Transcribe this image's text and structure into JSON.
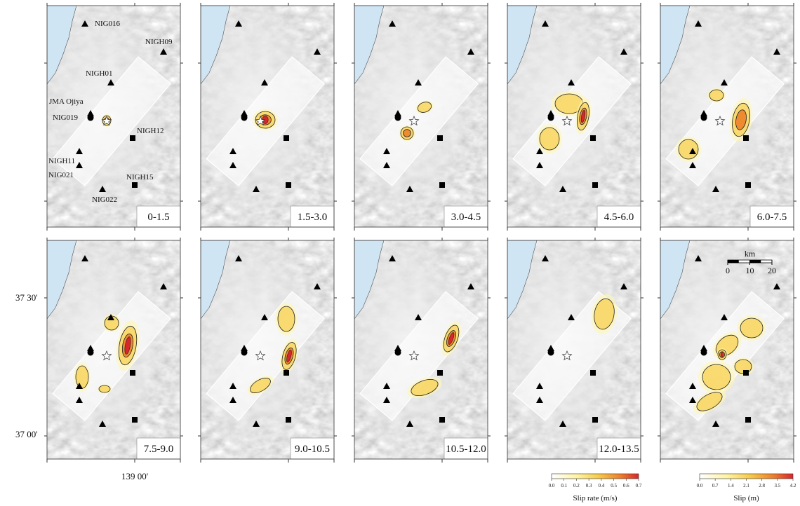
{
  "panels": [
    {
      "label": "0-1.5"
    },
    {
      "label": "1.5-3.0"
    },
    {
      "label": "3.0-4.5"
    },
    {
      "label": "4.5-6.0"
    },
    {
      "label": "6.0-7.5"
    },
    {
      "label": "7.5-9.0"
    },
    {
      "label": "9.0-10.5"
    },
    {
      "label": "10.5-12.0"
    },
    {
      "label": "12.0-13.5"
    },
    {
      "label": null
    }
  ],
  "stations": [
    {
      "label": "NIG016"
    },
    {
      "label": "NIGH09"
    },
    {
      "label": "NIGH01"
    },
    {
      "label": "JMA Ojiya"
    },
    {
      "label": "NIG019"
    },
    {
      "label": "NIGH12"
    },
    {
      "label": "NIGH11"
    },
    {
      "label": "NIG021"
    },
    {
      "label": "NIGH15"
    },
    {
      "label": "NIG022"
    }
  ],
  "axes": {
    "lat_labels": [
      "37 30'",
      "37 00'"
    ],
    "lon_label": "139 00'"
  },
  "scale_bar": {
    "unit": "km",
    "ticks": [
      0,
      10,
      20
    ]
  },
  "colorbars": [
    {
      "title": "Slip rate (m/s)",
      "ticks": [
        {
          "value": 0,
          "label": "0.0"
        },
        {
          "value": 0.1,
          "label": "0.1"
        },
        {
          "value": 0.2,
          "label": "0.2"
        },
        {
          "value": 0.3,
          "label": "0.3"
        },
        {
          "value": 0.4,
          "label": "0.4"
        },
        {
          "value": 0.5,
          "label": "0.5"
        },
        {
          "value": 0.6,
          "label": "0.6"
        },
        {
          "value": 0.7,
          "label": "0.7"
        }
      ]
    },
    {
      "title": "Slip (m)",
      "ticks": [
        {
          "value": 0,
          "label": "0.0"
        },
        {
          "value": 0.7,
          "label": "0.7"
        },
        {
          "value": 1.4,
          "label": "1.4"
        },
        {
          "value": 2.1,
          "label": "2.1"
        },
        {
          "value": 2.8,
          "label": "2.8"
        },
        {
          "value": 3.5,
          "label": "3.5"
        },
        {
          "value": 4.2,
          "label": "4.2"
        }
      ]
    }
  ]
}
